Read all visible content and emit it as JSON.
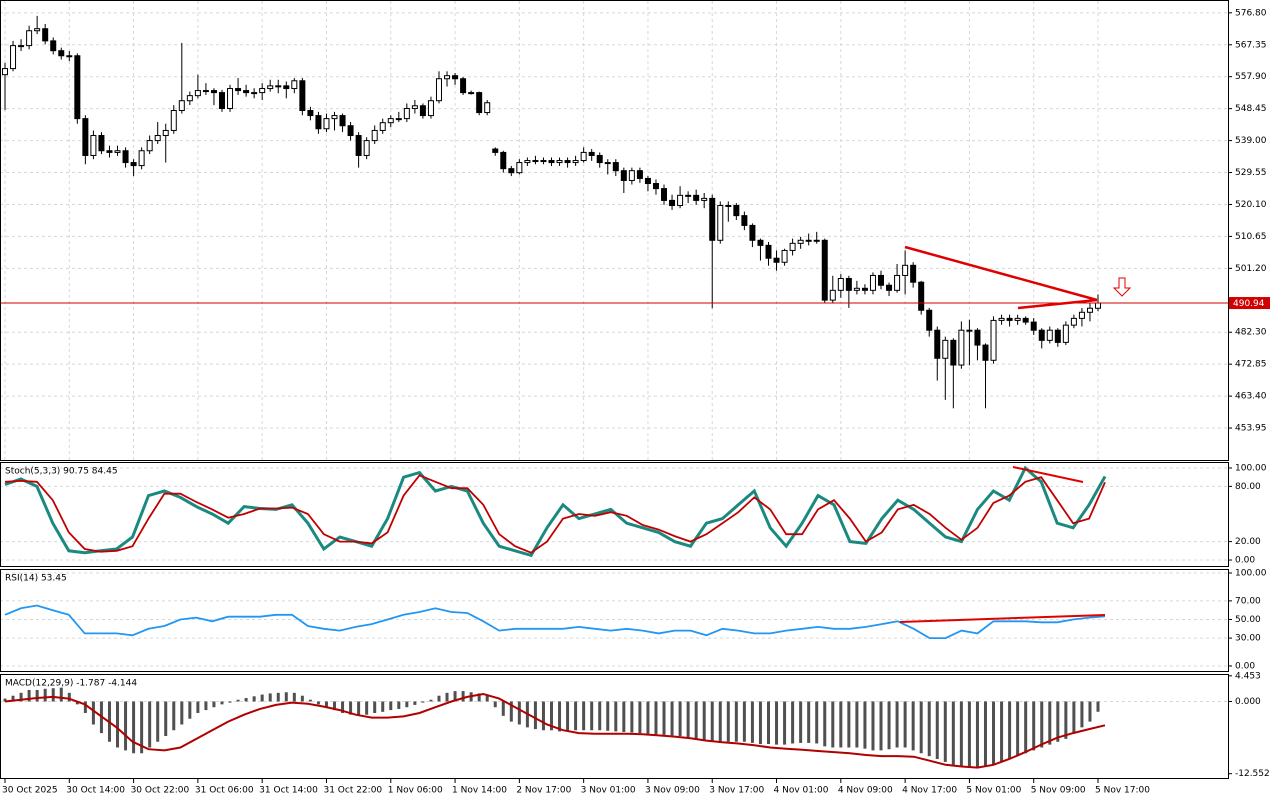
{
  "chart_data": [
    {
      "type": "candlestick",
      "grid": true,
      "open": [
        558.5,
        560.3,
        567.1,
        567.1,
        571.5,
        572.1,
        568.5,
        565.6,
        564.1,
        564.1,
        545.5,
        534.6,
        540.5,
        536.0,
        535.5,
        536.0,
        532.5,
        531.6,
        536.0,
        539.0,
        540.5,
        542.0,
        547.9,
        550.8,
        552.3,
        553.8,
        553.8,
        553.2,
        548.5,
        554.4,
        553.8,
        553.2,
        553.2,
        554.4,
        555.2,
        555.2,
        554.4,
        556.7,
        547.9,
        546.4,
        542.5,
        545.5,
        546.4,
        543.4,
        540.5,
        534.6,
        539.0,
        542.0,
        544.3,
        545.5,
        545.5,
        548.5,
        549.3,
        546.4,
        550.8,
        557.3,
        558.2,
        557.3,
        553.2,
        553.2,
        547.3,
        536.5,
        535.5,
        530.7,
        529.5,
        532.5,
        533.1,
        533.1,
        533.1,
        532.5,
        533.1,
        532.5,
        533.1,
        535.5,
        534.6,
        532.5,
        532.5,
        530.1,
        527.2,
        530.1,
        527.8,
        526.3,
        524.8,
        521.3,
        519.8,
        522.8,
        522.8,
        521.3,
        521.9,
        509.5,
        519.8,
        519.8,
        516.8,
        513.9,
        509.5,
        508.0,
        504.2,
        503.0,
        506.5,
        508.6,
        509.5,
        509.5,
        509.5,
        491.8,
        494.7,
        498.2,
        494.7,
        495.3,
        494.7,
        499.1,
        496.2,
        494.7,
        499.1,
        502.1,
        497.1,
        488.8,
        482.9,
        474.6,
        479.9,
        472.6,
        482.9,
        482.9,
        478.5,
        474.0,
        485.8,
        486.4,
        485.8,
        486.4,
        485.3,
        482.9,
        479.9,
        482.9,
        479.3,
        484.4,
        486.4,
        488.2,
        489.4
      ],
      "high": [
        562.0,
        568.5,
        569.0,
        573.0,
        575.9,
        573.5,
        569.5,
        566.5,
        565.5,
        564.8,
        546.5,
        542.0,
        541.5,
        537.5,
        537.5,
        537.0,
        533.5,
        537.0,
        540.5,
        544.5,
        544.0,
        549.5,
        567.9,
        553.5,
        558.5,
        556.0,
        554.5,
        554.0,
        555.5,
        557.5,
        555.5,
        554.5,
        556.0,
        557.0,
        557.0,
        556.5,
        557.5,
        557.5,
        549.0,
        547.5,
        547.0,
        547.5,
        547.0,
        544.5,
        541.5,
        540.0,
        543.5,
        545.5,
        546.5,
        547.5,
        550.0,
        551.0,
        550.0,
        552.0,
        559.5,
        559.5,
        559.0,
        557.8,
        553.8,
        553.5,
        551.0,
        537.0,
        536.0,
        531.5,
        533.5,
        534.0,
        534.5,
        534.0,
        534.0,
        534.0,
        534.0,
        534.5,
        537.0,
        536.5,
        535.5,
        533.5,
        533.5,
        531.0,
        531.0,
        531.0,
        528.5,
        527.5,
        526.0,
        523.0,
        525.5,
        524.0,
        524.5,
        523.5,
        523.0,
        521.0,
        521.0,
        520.5,
        518.0,
        514.5,
        510.0,
        509.0,
        506.5,
        507.0,
        510.0,
        510.5,
        511.5,
        512.0,
        510.0,
        499.0,
        499.5,
        499.0,
        497.5,
        496.5,
        500.0,
        500.5,
        497.0,
        502.5,
        506.5,
        503.0,
        497.5,
        489.5,
        484.0,
        481.0,
        480.5,
        485.5,
        486.0,
        483.5,
        479.0,
        487.0,
        487.5,
        487.5,
        487.5,
        487.0,
        486.5,
        483.5,
        484.0,
        483.5,
        485.5,
        487.5,
        489.5,
        491.0,
        493.5
      ],
      "low": [
        548.0,
        559.5,
        565.5,
        566.0,
        570.5,
        567.5,
        564.5,
        563.0,
        562.5,
        544.0,
        532.0,
        533.5,
        535.0,
        534.0,
        534.5,
        531.0,
        528.5,
        530.5,
        535.0,
        538.0,
        532.5,
        541.0,
        547.0,
        549.5,
        551.5,
        552.5,
        549.5,
        547.5,
        547.5,
        552.5,
        552.0,
        551.5,
        551.0,
        553.5,
        553.0,
        551.5,
        553.0,
        546.5,
        545.0,
        541.0,
        541.5,
        542.0,
        541.5,
        539.0,
        531.0,
        533.5,
        538.0,
        541.0,
        543.0,
        544.5,
        544.5,
        547.0,
        545.5,
        545.5,
        550.0,
        555.0,
        555.5,
        552.5,
        552.6,
        546.5,
        546.5,
        534.5,
        529.5,
        528.5,
        529.0,
        531.5,
        532.0,
        532.0,
        531.5,
        531.5,
        531.0,
        531.5,
        532.5,
        533.0,
        531.0,
        529.0,
        528.5,
        523.5,
        526.0,
        526.5,
        524.0,
        523.0,
        520.0,
        518.5,
        519.0,
        520.5,
        520.0,
        519.0,
        489.4,
        508.5,
        515.0,
        515.5,
        512.5,
        507.5,
        503.5,
        502.0,
        500.5,
        502.0,
        505.0,
        507.0,
        508.0,
        508.5,
        491.0,
        491.0,
        492.5,
        489.5,
        493.5,
        493.5,
        493.5,
        495.0,
        493.0,
        494.0,
        493.5,
        495.5,
        487.5,
        481.0,
        468.0,
        462.3,
        459.8,
        471.5,
        472.5,
        474.0,
        459.8,
        473.0,
        484.5,
        484.0,
        484.5,
        484.5,
        481.5,
        477.5,
        479.0,
        478.0,
        478.5,
        483.5,
        484.0,
        485.5,
        488.5
      ],
      "close": [
        560.3,
        567.1,
        567.1,
        571.5,
        572.1,
        568.5,
        565.6,
        564.1,
        564.1,
        545.5,
        534.6,
        540.5,
        536.0,
        535.5,
        536.0,
        532.5,
        531.6,
        536.0,
        539.0,
        540.5,
        542.0,
        547.9,
        550.8,
        552.3,
        553.8,
        553.8,
        553.2,
        548.5,
        554.4,
        553.8,
        553.2,
        553.2,
        554.4,
        555.2,
        555.2,
        554.4,
        556.7,
        547.9,
        546.4,
        542.5,
        545.5,
        546.4,
        543.4,
        540.5,
        534.6,
        539.0,
        542.0,
        544.3,
        545.5,
        545.5,
        548.5,
        549.3,
        546.4,
        550.8,
        557.3,
        558.2,
        557.3,
        553.2,
        553.2,
        547.3,
        550.2,
        535.5,
        530.7,
        529.5,
        532.5,
        533.1,
        533.1,
        533.1,
        532.5,
        533.1,
        532.5,
        533.1,
        535.5,
        534.6,
        532.5,
        532.5,
        530.1,
        527.2,
        530.1,
        527.8,
        526.3,
        524.8,
        521.3,
        519.8,
        522.8,
        522.8,
        521.3,
        521.9,
        509.5,
        519.8,
        519.8,
        516.8,
        513.9,
        509.5,
        508.0,
        504.2,
        503.0,
        506.5,
        508.6,
        509.5,
        509.5,
        509.5,
        491.8,
        494.7,
        498.2,
        494.7,
        495.3,
        494.7,
        499.1,
        496.2,
        494.7,
        499.1,
        502.1,
        497.1,
        488.8,
        482.9,
        474.6,
        479.9,
        472.6,
        482.9,
        482.9,
        478.5,
        474.0,
        485.8,
        486.4,
        485.8,
        486.4,
        485.3,
        482.9,
        479.9,
        482.9,
        479.3,
        484.4,
        486.4,
        488.2,
        489.4,
        490.94
      ],
      "ylim": [
        444.5,
        580.3
      ],
      "yticks": [
        {
          "value": 576.8,
          "label": "576.80"
        },
        567.35,
        {
          "value": 557.9,
          "label": "557.90"
        },
        548.45,
        {
          "value": 539,
          "label": "539.00"
        },
        529.55,
        {
          "value": 520.1,
          "label": "520.10"
        },
        510.65,
        {
          "value": 501.2,
          "label": "501.20"
        },
        {
          "value": 482.3,
          "label": "482.30"
        },
        472.85,
        {
          "value": 463.4,
          "label": "463.40"
        },
        453.95
      ],
      "current_price": 490.94,
      "current_price_color": "#d00000",
      "x_labels": [
        "30 Oct 2025",
        "30 Oct 14:00",
        "30 Oct 22:00",
        "31 Oct 06:00",
        "31 Oct 14:00",
        "31 Oct 22:00",
        "1 Nov 06:00",
        "1 Nov 14:00",
        "2 Nov 17:00",
        "3 Nov 01:00",
        "3 Nov 09:00",
        "3 Nov 17:00",
        "4 Nov 01:00",
        "4 Nov 09:00",
        "4 Nov 17:00",
        "5 Nov 01:00",
        "5 Nov 09:00",
        "5 Nov 17:00"
      ]
    },
    {
      "type": "line",
      "title": "Stoch(5,3,3) 90.75 84.45",
      "ylim": [
        -6.5,
        105.4
      ],
      "yticks": [
        {
          "value": 100,
          "label": "100.00"
        },
        {
          "value": 80,
          "label": "80.00"
        },
        {
          "value": 20,
          "label": "20.00"
        },
        {
          "value": 0,
          "label": "0.00"
        }
      ],
      "series": [
        {
          "color": "#1a8a80",
          "values": [
            82,
            88,
            80,
            40,
            10,
            8,
            10,
            12,
            25,
            70,
            75,
            68,
            58,
            50,
            40,
            58,
            56,
            55,
            60,
            40,
            12,
            25,
            20,
            15,
            45,
            90,
            95,
            75,
            80,
            75,
            40,
            15,
            10,
            5,
            35,
            60,
            45,
            50,
            55,
            40,
            35,
            30,
            20,
            15,
            40,
            45,
            60,
            75,
            35,
            15,
            40,
            70,
            60,
            20,
            18,
            45,
            65,
            55,
            40,
            25,
            20,
            55,
            75,
            65,
            100,
            85,
            40,
            35,
            60,
            90.75
          ]
        },
        {
          "color": "#c00000",
          "values": [
            85,
            86,
            85,
            65,
            30,
            12,
            9,
            10,
            15,
            45,
            72,
            72,
            63,
            55,
            46,
            50,
            56,
            56,
            57,
            50,
            28,
            20,
            20,
            18,
            30,
            70,
            92,
            85,
            78,
            78,
            60,
            28,
            15,
            8,
            20,
            45,
            50,
            48,
            52,
            48,
            38,
            33,
            26,
            20,
            28,
            40,
            52,
            68,
            55,
            28,
            28,
            55,
            65,
            45,
            20,
            30,
            55,
            60,
            50,
            35,
            22,
            35,
            62,
            70,
            85,
            90,
            65,
            40,
            45,
            84.45
          ]
        }
      ]
    },
    {
      "type": "line",
      "title": "RSI(14) 53.45",
      "ylim": [
        -5.4,
        103.2
      ],
      "yticks": [
        {
          "value": 100,
          "label": "100.00"
        },
        {
          "value": 70,
          "label": "70.00"
        },
        {
          "value": 50,
          "label": "50.00"
        },
        {
          "value": 30,
          "label": "30.00"
        },
        {
          "value": 0,
          "label": "0.00"
        }
      ],
      "series": [
        {
          "color": "#2196f3",
          "values": [
            55,
            62,
            65,
            60,
            55,
            35,
            35,
            35,
            33,
            40,
            43,
            50,
            52,
            48,
            53,
            53,
            53,
            55,
            55,
            43,
            40,
            38,
            42,
            45,
            50,
            55,
            58,
            62,
            58,
            57,
            48,
            38,
            40,
            40,
            40,
            40,
            42,
            40,
            38,
            40,
            38,
            35,
            38,
            38,
            33,
            40,
            38,
            35,
            35,
            38,
            40,
            42,
            40,
            40,
            42,
            45,
            48,
            40,
            30,
            30,
            38,
            35,
            48,
            48,
            48,
            47,
            47,
            50,
            52,
            53.45
          ]
        }
      ]
    },
    {
      "type": "macd",
      "title": "MACD(12,29,9) -1.787 -4.144",
      "ylim": [
        -13.3,
        4.6
      ],
      "yticks": [
        4.453,
        {
          "value": 0,
          "label": "0.000"
        },
        -12.552
      ],
      "color": "#505050",
      "values": [
        0.5,
        1,
        1.5,
        2,
        2,
        2.2,
        2.3,
        2.4,
        1.5,
        -0.5,
        -2,
        -4,
        -5.5,
        -7,
        -8,
        -8.5,
        -9,
        -9,
        -8,
        -7,
        -6,
        -5,
        -4,
        -3,
        -2,
        -1.5,
        -1,
        -0.5,
        -0.2,
        0.3,
        0.6,
        0.9,
        1.2,
        1.4,
        1.5,
        1.6,
        1.5,
        1,
        0.3,
        -0.5,
        -1,
        -1.5,
        -2,
        -2.3,
        -2.5,
        -2.3,
        -2,
        -1.8,
        -1.5,
        -1.3,
        -1,
        -0.6,
        -0.2,
        0.3,
        1,
        1.5,
        1.8,
        1.8,
        1.6,
        1.4,
        1,
        -1,
        -2.5,
        -3.5,
        -4,
        -4.5,
        -4.8,
        -5,
        -5,
        -5.2,
        -5.2,
        -5,
        -5,
        -5,
        -5,
        -5.1,
        -5.2,
        -5.3,
        -5.4,
        -5.5,
        -5.6,
        -5.7,
        -5.8,
        -5.9,
        -6,
        -6.2,
        -6.5,
        -6.8,
        -7,
        -7,
        -7,
        -7,
        -7,
        -7.2,
        -7.4,
        -7.4,
        -7.5,
        -7.5,
        -7.3,
        -7.2,
        -7.2,
        -7.3,
        -7.8,
        -8,
        -8,
        -8,
        -8,
        -8.2,
        -8.5,
        -8.5,
        -8.3,
        -8,
        -8,
        -8.5,
        -9,
        -9.5,
        -10,
        -10.5,
        -11,
        -11.3,
        -11.5,
        -11.5,
        -11.3,
        -11,
        -10.5,
        -10,
        -9.5,
        -9,
        -8.5,
        -8,
        -7.5,
        -7,
        -6.5,
        -5.5,
        -4.5,
        -3.5,
        -1.787
      ],
      "series": [
        {
          "color": "#b00000",
          "values": [
            0,
            0.3,
            0.6,
            0.8,
            0.5,
            -0.5,
            -2.5,
            -4.5,
            -7,
            -8.3,
            -8.5,
            -8,
            -6.5,
            -5,
            -3.5,
            -2.3,
            -1.3,
            -0.6,
            -0.2,
            -0.4,
            -0.9,
            -1.5,
            -2.3,
            -2.8,
            -2.8,
            -2.6,
            -2,
            -1,
            0,
            0.8,
            1.3,
            0.5,
            -1,
            -2.5,
            -4,
            -5,
            -5.5,
            -5.6,
            -5.6,
            -5.6,
            -5.7,
            -5.9,
            -6.1,
            -6.4,
            -6.8,
            -7.1,
            -7.3,
            -7.6,
            -8,
            -8.2,
            -8.4,
            -8.6,
            -8.8,
            -9,
            -9.3,
            -9.5,
            -9.5,
            -9.6,
            -10.3,
            -11,
            -11.3,
            -11.5,
            -11,
            -10,
            -8.8,
            -7.5,
            -6.3,
            -5.5,
            -4.8,
            -4.144
          ]
        }
      ]
    }
  ]
}
